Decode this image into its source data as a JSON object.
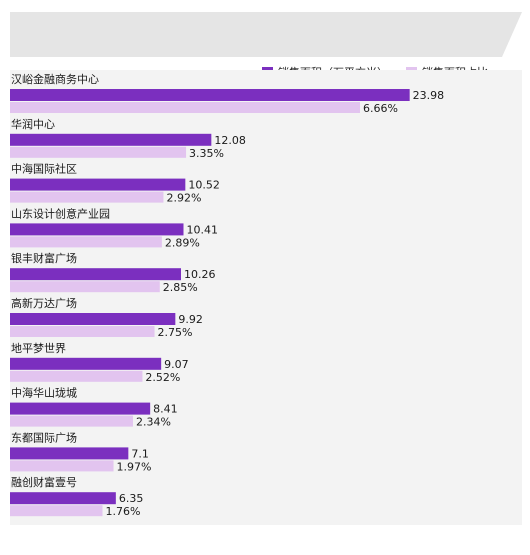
{
  "colors": {
    "banner": "#e5e5e5",
    "area": "#f3f3f3",
    "series_1": "#7b2fbf",
    "series_2": "#e2c4ef"
  },
  "chart_data": {
    "type": "bar",
    "orientation": "horizontal",
    "title": "",
    "xlabel": "",
    "ylabel": "",
    "legend_position": "top-right",
    "categories": [
      "汉峪金融商务中心",
      "华润中心",
      "中海国际社区",
      "山东设计创意产业园",
      "银丰财富广场",
      "高新万达广场",
      "地平梦世界",
      "中海华山珑城",
      "东都国际广场",
      "融创财富壹号"
    ],
    "series": [
      {
        "name": "销售面积（万平方米）",
        "values": [
          23.98,
          12.08,
          10.52,
          10.41,
          10.26,
          9.92,
          9.07,
          8.41,
          7.1,
          6.35
        ],
        "labels": [
          "23.98",
          "12.08",
          "10.52",
          "10.41",
          "10.26",
          "9.92",
          "9.07",
          "8.41",
          "7.1",
          "6.35"
        ]
      },
      {
        "name": "销售面积占比",
        "values": [
          6.66,
          3.35,
          2.92,
          2.89,
          2.85,
          2.75,
          2.52,
          2.34,
          1.97,
          1.76
        ],
        "labels": [
          "6.66%",
          "3.35%",
          "2.92%",
          "2.89%",
          "2.85%",
          "2.75%",
          "2.52%",
          "2.34%",
          "1.97%",
          "1.76%"
        ]
      }
    ]
  }
}
